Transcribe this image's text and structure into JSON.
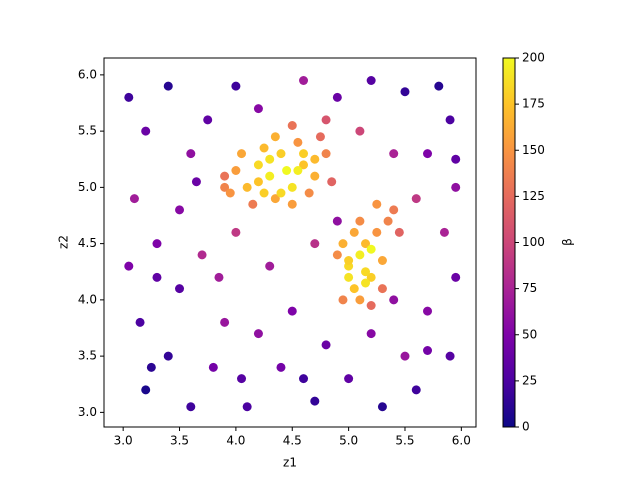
{
  "chart_data": {
    "type": "scatter",
    "xlabel": "z1",
    "ylabel": "z2",
    "colorbar_label": "β",
    "colormap": "plasma",
    "xlim": [
      2.83,
      6.13
    ],
    "ylim": [
      2.87,
      6.15
    ],
    "clim": [
      0,
      200
    ],
    "xticks": [
      {
        "value": 3,
        "label": "3.0"
      },
      3.5,
      {
        "value": 4,
        "label": "4.0"
      },
      4.5,
      {
        "value": 5,
        "label": "5.0"
      },
      5.5,
      {
        "value": 6,
        "label": "6.0"
      }
    ],
    "yticks": [
      {
        "value": 3,
        "label": "3.0"
      },
      3.5,
      {
        "value": 4,
        "label": "4.0"
      },
      4.5,
      {
        "value": 5,
        "label": "5.0"
      },
      5.5,
      {
        "value": 6,
        "label": "6.0"
      }
    ],
    "cticks": [
      0,
      25,
      50,
      75,
      100,
      125,
      150,
      175,
      200
    ],
    "x": [
      3.05,
      3.2,
      3.4,
      3.6,
      3.1,
      3.3,
      3.5,
      3.15,
      3.4,
      3.2,
      3.6,
      3.8,
      3.9,
      3.7,
      3.75,
      4.0,
      4.2,
      4.6,
      4.9,
      5.2,
      5.5,
      5.8,
      5.9,
      5.7,
      5.95,
      5.85,
      5.95,
      5.7,
      5.9,
      5.6,
      5.3,
      5.0,
      4.7,
      4.4,
      4.1,
      4.2,
      4.5,
      4.8,
      5.2,
      5.5,
      4.3,
      4.0,
      3.9,
      4.7,
      4.9,
      5.4,
      5.6,
      5.1,
      4.8,
      3.3,
      3.05,
      3.5,
      3.65,
      3.85,
      4.05,
      4.6,
      5.7,
      5.4,
      3.25,
      5.95,
      4.1,
      4.2,
      4.3,
      4.4,
      4.5,
      4.6,
      4.35,
      4.55,
      4.7,
      4.0,
      4.25,
      4.45,
      4.65,
      4.8,
      3.95,
      4.15,
      4.5,
      4.75,
      4.3,
      4.4,
      4.6,
      4.2,
      4.55,
      4.85,
      4.05,
      3.9,
      4.35,
      4.7,
      4.5,
      4.25,
      5.0,
      5.1,
      5.2,
      5.05,
      5.15,
      5.3,
      4.95,
      5.25,
      5.1,
      5.0,
      5.2,
      5.35,
      5.4,
      4.9,
      5.15,
      5.05,
      5.3,
      4.95,
      5.2,
      5.45,
      5.25,
      5.1,
      5.0,
      5.15
    ],
    "y": [
      5.8,
      5.5,
      5.9,
      5.3,
      4.9,
      4.5,
      4.1,
      3.8,
      3.5,
      3.2,
      3.05,
      3.4,
      3.8,
      4.4,
      5.6,
      5.9,
      5.7,
      5.95,
      5.8,
      5.95,
      5.85,
      5.9,
      5.6,
      5.3,
      5.0,
      4.6,
      4.2,
      3.9,
      3.5,
      3.2,
      3.05,
      3.3,
      3.1,
      3.4,
      3.05,
      3.7,
      3.9,
      3.6,
      3.7,
      3.5,
      4.3,
      4.6,
      5.0,
      4.5,
      4.7,
      5.3,
      4.9,
      5.5,
      5.6,
      4.2,
      4.3,
      4.8,
      5.05,
      4.2,
      3.3,
      3.3,
      3.55,
      4.0,
      3.4,
      5.25,
      5.0,
      5.2,
      5.1,
      5.3,
      5.0,
      5.2,
      4.9,
      5.4,
      5.1,
      5.15,
      5.35,
      5.15,
      4.95,
      5.3,
      4.95,
      4.85,
      5.55,
      5.45,
      5.25,
      4.95,
      5.3,
      5.05,
      5.15,
      5.05,
      5.3,
      5.1,
      5.45,
      5.25,
      4.85,
      4.95,
      4.3,
      4.4,
      4.2,
      4.1,
      4.5,
      4.35,
      4.5,
      4.6,
      4.0,
      4.2,
      4.45,
      4.7,
      4.8,
      4.4,
      4.25,
      4.6,
      4.1,
      4.0,
      3.95,
      4.6,
      4.85,
      4.7,
      4.35,
      4.15
    ],
    "c": [
      20,
      40,
      10,
      60,
      70,
      50,
      30,
      25,
      15,
      5,
      20,
      45,
      65,
      80,
      35,
      20,
      55,
      70,
      40,
      30,
      15,
      10,
      25,
      50,
      60,
      75,
      40,
      55,
      30,
      20,
      10,
      35,
      15,
      45,
      25,
      60,
      50,
      40,
      55,
      65,
      70,
      90,
      140,
      85,
      60,
      75,
      90,
      100,
      110,
      35,
      50,
      55,
      40,
      70,
      30,
      20,
      45,
      60,
      12,
      35,
      170,
      185,
      195,
      180,
      190,
      175,
      160,
      150,
      165,
      155,
      170,
      200,
      145,
      140,
      150,
      135,
      130,
      125,
      190,
      185,
      180,
      175,
      195,
      120,
      160,
      130,
      165,
      170,
      155,
      180,
      185,
      195,
      180,
      175,
      170,
      160,
      165,
      150,
      155,
      190,
      200,
      140,
      135,
      145,
      185,
      160,
      130,
      140,
      125,
      120,
      150,
      145,
      180,
      190
    ]
  }
}
